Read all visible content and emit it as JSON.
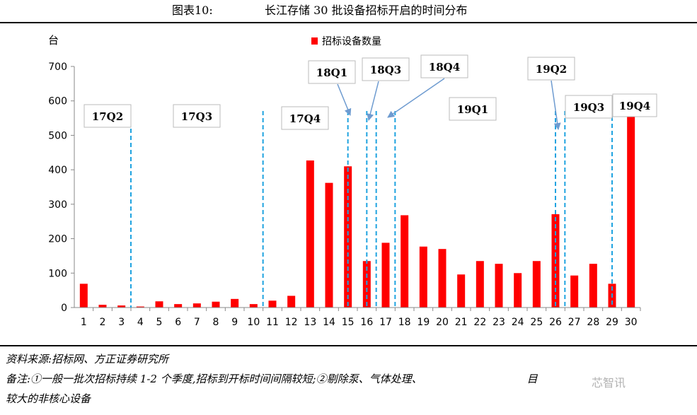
{
  "figure": {
    "number": "图表10:",
    "title": "长江存储 30 批设备招标开启的时间分布"
  },
  "footer": {
    "source": "资料来源:招标网、方正证券研究所",
    "note_line1": "备注:①一般一批次招标持续 1-2 个季度,招标到开标时间间隔较短;②剔除泵、气体处理、",
    "note_line2": "较大的非核心设备",
    "note_tail": "目"
  },
  "watermark": "芯智讯",
  "colors": {
    "bar": "#FF0000",
    "divider": "#1FA3E0",
    "arrow": "#6E9BD0"
  },
  "chart_data": {
    "type": "bar",
    "title": "长江存储 30 批设备招标开启的时间分布",
    "ylabel": "台",
    "xlabel": "",
    "ylim": [
      0,
      700
    ],
    "yticks": [
      "0",
      "100",
      "200",
      "300",
      "400",
      "500",
      "600",
      "700"
    ],
    "legend": "招标设备数量",
    "legend_position": "top-center",
    "categories": [
      "1",
      "2",
      "3",
      "4",
      "5",
      "6",
      "7",
      "8",
      "9",
      "10",
      "11",
      "12",
      "13",
      "14",
      "15",
      "16",
      "17",
      "18",
      "19",
      "20",
      "21",
      "22",
      "23",
      "24",
      "25",
      "26",
      "27",
      "28",
      "29",
      "30"
    ],
    "series": [
      {
        "name": "招标设备数量",
        "values": [
          69,
          8,
          6,
          3,
          18,
          10,
          12,
          17,
          25,
          10,
          20,
          34,
          427,
          362,
          410,
          135,
          188,
          268,
          177,
          170,
          96,
          135,
          127,
          100,
          135,
          271,
          93,
          127,
          69,
          555
        ]
      }
    ],
    "dividers_after_batch": [
      3,
      10,
      14.5,
      15.5,
      16,
      17,
      25.5,
      26,
      28.5
    ],
    "quarter_labels": [
      "17Q2",
      "17Q3",
      "17Q4",
      "18Q1",
      "18Q3",
      "18Q4",
      "19Q1",
      "19Q2",
      "19Q3",
      "19Q4"
    ]
  }
}
